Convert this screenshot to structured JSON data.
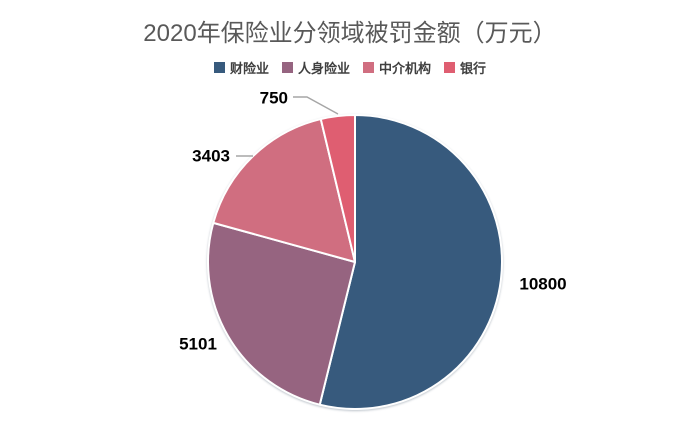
{
  "chart_data": {
    "type": "pie",
    "title": "2020年保险业分领域被罚金额（万元）",
    "unit": "万元",
    "categories": [
      "财险业",
      "人身险业",
      "中介机构",
      "银行"
    ],
    "values": [
      10800,
      5101,
      3403,
      750
    ],
    "data_labels": [
      "10800",
      "5101",
      "3403",
      "750"
    ],
    "colors": [
      "#375A7D",
      "#966480",
      "#D06E80",
      "#DF5E71"
    ],
    "legend_position": "top",
    "start_angle_deg": 0,
    "direction": "clockwise",
    "title_color": "#595959",
    "legend_text_color": "#404040",
    "data_label_color": "#000000",
    "leader_line_color": "#A6A6A6",
    "slice_border_color": "#FFFFFF",
    "background": "#FFFFFF"
  }
}
